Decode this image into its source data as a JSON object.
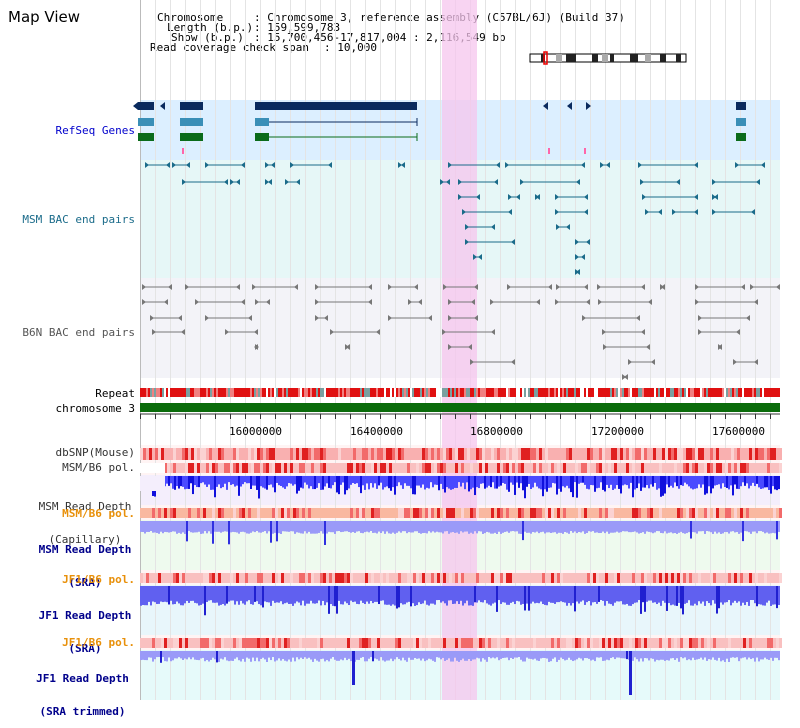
{
  "app_title": "Map View",
  "info": {
    "k_chromosome": "Chromosome",
    "v_chromosome": ": Chromosome 3, reference assembly (C57BL/6J) (Build 37)",
    "k_length": "Length (b.p.)",
    "v_length": ": 159,599,783",
    "k_show": "Show (b.p.)",
    "v_show": ": 15,700,456-17,817,004 : 2,116,549 bp",
    "k_span": "Read coverage check span",
    "v_span": ": 10,000"
  },
  "tracks": {
    "refseq": "RefSeq Genes",
    "msm_bac": "MSM BAC end pairs",
    "b6n_bac": "B6N BAC end pairs",
    "repeat": "Repeat",
    "chromosome": "chromosome 3",
    "dbsnp": "dbSNP(Mouse)",
    "msm_b6_pol_1": "MSM/B6 pol.",
    "msm_depth_cap_1": "MSM Read Depth",
    "msm_depth_cap_2": "(Capillary)",
    "msm_b6_pol_2": "MSM/B6 pol.",
    "msm_depth_sra_1": "MSM Read Depth",
    "msm_depth_sra_2": "(SRA)",
    "jf1_b6_pol_1": "JF1/B6 pol.",
    "jf1_depth_sra_1": "JF1 Read Depth",
    "jf1_depth_sra_2": "(SRA)",
    "jf1_b6_pol_2": "JF1/B6 pol.",
    "jf1_depth_trim_1": "JF1 Read Depth",
    "jf1_depth_trim_2": "(SRA trimmed)"
  },
  "axis": {
    "ticks": [
      "16000000",
      "16400000",
      "16800000",
      "17200000",
      "17600000"
    ]
  },
  "colors": {
    "refseq_dark": "#0a2a5e",
    "refseq_mid": "#3a8fb7",
    "refseq_green": "#0a6b1a",
    "msm": "#1a6b8a",
    "b6n": "#777777",
    "chrom": "#0a6b0a",
    "highlight": "#f5c6ee",
    "label_orange": "#e8900a",
    "label_blue": "#00008b",
    "label_teal": "#1a6b8a"
  }
}
